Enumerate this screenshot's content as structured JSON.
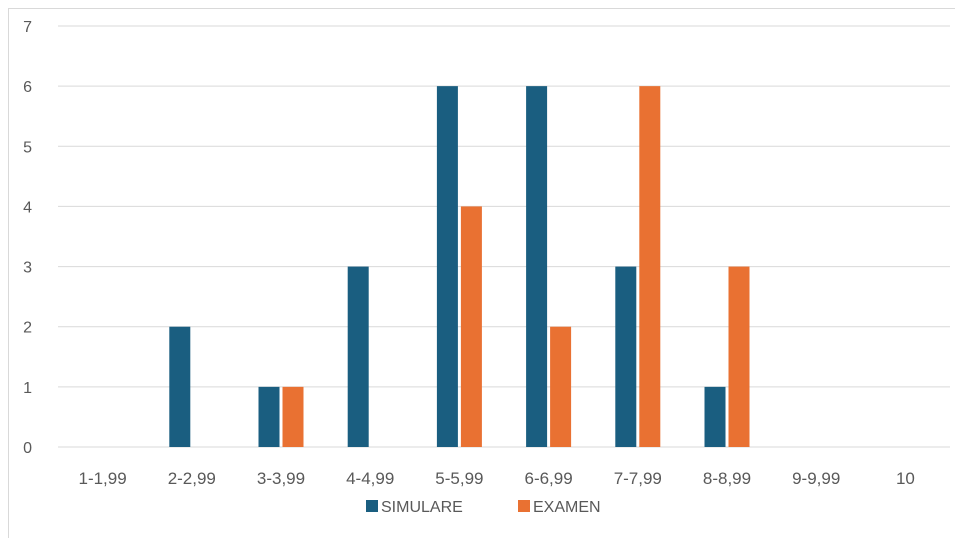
{
  "chart_data": {
    "type": "bar",
    "title": "",
    "xlabel": "",
    "ylabel": "",
    "categories": [
      "1-1,99",
      "2-2,99",
      "3-3,99",
      "4-4,99",
      "5-5,99",
      "6-6,99",
      "7-7,99",
      "8-8,99",
      "9-9,99",
      "10"
    ],
    "series": [
      {
        "name": "SIMULARE",
        "color": "#1a5e80",
        "values": [
          0,
          2,
          1,
          3,
          6,
          6,
          3,
          1,
          0,
          0
        ]
      },
      {
        "name": "EXAMEN",
        "color": "#e97132",
        "values": [
          0,
          0,
          1,
          0,
          4,
          2,
          6,
          3,
          0,
          0
        ]
      }
    ],
    "ylim": [
      0,
      7
    ],
    "yticks": [
      "0",
      "1",
      "2",
      "3",
      "4",
      "5",
      "6",
      "7"
    ],
    "grid": true,
    "legend": "bottom"
  }
}
